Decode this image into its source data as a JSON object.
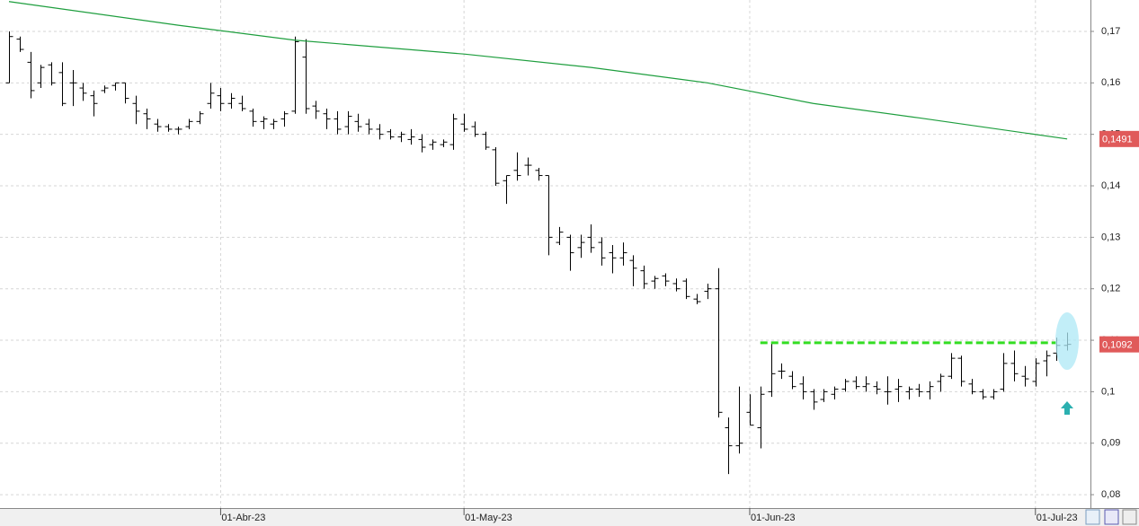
{
  "chart_data": {
    "type": "ohlc",
    "ylim": [
      0.0774,
      0.1761
    ],
    "xlim": [
      -0.85,
      102.2
    ],
    "yticks": [
      {
        "value": 0.17,
        "label": "0,17"
      },
      {
        "value": 0.16,
        "label": "0,16"
      },
      {
        "value": 0.15,
        "label": "0,15"
      },
      {
        "value": 0.14,
        "label": "0,14"
      },
      {
        "value": 0.13,
        "label": "0,13"
      },
      {
        "value": 0.12,
        "label": "0,12"
      },
      {
        "value": 0.11,
        "label": "0,11"
      },
      {
        "value": 0.1,
        "label": "0,1"
      },
      {
        "value": 0.09,
        "label": "0,09"
      },
      {
        "value": 0.08,
        "label": "0,08"
      }
    ],
    "xticks": [
      {
        "value": 20,
        "label": "01-Abr-23"
      },
      {
        "value": 43,
        "label": "01-May-23"
      },
      {
        "value": 70,
        "label": "01-Jun-23"
      },
      {
        "value": 97,
        "label": "01-Jul-23"
      }
    ],
    "grid": true,
    "color": "#000000",
    "open": [
      0.16,
      0.1685,
      0.164,
      0.16,
      0.1635,
      0.162,
      0.16,
      0.159,
      0.1575,
      0.1585,
      0.1595,
      0.16,
      0.156,
      0.154,
      0.152,
      0.1515,
      0.151,
      0.1515,
      0.1525,
      0.156,
      0.1575,
      0.156,
      0.156,
      0.1545,
      0.1525,
      0.152,
      0.153,
      0.1545,
      0.165,
      0.1555,
      0.154,
      0.153,
      0.1515,
      0.1525,
      0.152,
      0.151,
      0.1505,
      0.1495,
      0.149,
      0.149,
      0.148,
      0.148,
      0.148,
      0.152,
      0.1515,
      0.15,
      0.147,
      0.141,
      0.143,
      0.144,
      0.143,
      0.142,
      0.129,
      0.13,
      0.128,
      0.13,
      0.129,
      0.127,
      0.126,
      0.1255,
      0.1235,
      0.1215,
      0.1225,
      0.121,
      0.1215,
      0.118,
      0.1195,
      0.12,
      0.093,
      0.0895,
      0.096,
      0.093,
      0.1,
      0.104,
      0.103,
      0.1015,
      0.1,
      0.0985,
      0.0995,
      0.1005,
      0.102,
      0.101,
      0.101,
      0.1,
      0.1005,
      0.1,
      0.1005,
      0.1,
      0.102,
      0.103,
      0.1065,
      0.1015,
      0.1,
      0.099,
      0.1005,
      0.1055,
      0.103,
      0.102,
      0.106,
      0.1075,
      0.109
    ],
    "high": [
      0.17,
      0.169,
      0.166,
      0.1635,
      0.164,
      0.164,
      0.1625,
      0.16,
      0.1585,
      0.1595,
      0.16,
      0.16,
      0.1575,
      0.155,
      0.153,
      0.152,
      0.1515,
      0.153,
      0.1545,
      0.16,
      0.159,
      0.158,
      0.1575,
      0.155,
      0.1535,
      0.153,
      0.1545,
      0.169,
      0.1685,
      0.1565,
      0.155,
      0.1545,
      0.1545,
      0.154,
      0.153,
      0.152,
      0.151,
      0.1505,
      0.151,
      0.15,
      0.149,
      0.149,
      0.154,
      0.154,
      0.1525,
      0.1505,
      0.1475,
      0.142,
      0.1465,
      0.1455,
      0.1435,
      0.142,
      0.132,
      0.1305,
      0.1305,
      0.1325,
      0.13,
      0.1285,
      0.129,
      0.1265,
      0.1245,
      0.1225,
      0.123,
      0.122,
      0.122,
      0.119,
      0.121,
      0.124,
      0.095,
      0.101,
      0.0995,
      0.101,
      0.1095,
      0.1055,
      0.104,
      0.103,
      0.1005,
      0.1005,
      0.101,
      0.1025,
      0.103,
      0.103,
      0.102,
      0.103,
      0.1025,
      0.101,
      0.1015,
      0.102,
      0.1035,
      0.1075,
      0.107,
      0.1025,
      0.1005,
      0.1005,
      0.1075,
      0.108,
      0.105,
      0.1065,
      0.108,
      0.1105,
      0.1115
    ],
    "low": [
      0.16,
      0.166,
      0.157,
      0.159,
      0.1595,
      0.1555,
      0.1555,
      0.1565,
      0.1535,
      0.158,
      0.1585,
      0.156,
      0.152,
      0.151,
      0.1505,
      0.1505,
      0.15,
      0.151,
      0.152,
      0.155,
      0.1545,
      0.155,
      0.1545,
      0.1515,
      0.151,
      0.151,
      0.1515,
      0.154,
      0.154,
      0.153,
      0.151,
      0.15,
      0.15,
      0.1505,
      0.15,
      0.149,
      0.149,
      0.1485,
      0.148,
      0.1465,
      0.147,
      0.1475,
      0.147,
      0.1505,
      0.1495,
      0.147,
      0.14,
      0.1365,
      0.141,
      0.142,
      0.141,
      0.1265,
      0.1285,
      0.1235,
      0.126,
      0.127,
      0.1245,
      0.123,
      0.1245,
      0.1205,
      0.12,
      0.12,
      0.1205,
      0.1195,
      0.118,
      0.117,
      0.118,
      0.095,
      0.084,
      0.088,
      0.0935,
      0.089,
      0.099,
      0.1025,
      0.1005,
      0.0985,
      0.0965,
      0.098,
      0.0985,
      0.1,
      0.1005,
      0.1,
      0.0995,
      0.0975,
      0.098,
      0.0985,
      0.099,
      0.0985,
      0.1,
      0.1025,
      0.101,
      0.0995,
      0.0985,
      0.0985,
      0.1,
      0.102,
      0.101,
      0.101,
      0.103,
      0.106,
      0.108
    ],
    "close": [
      0.169,
      0.1665,
      0.1585,
      0.163,
      0.16,
      0.156,
      0.16,
      0.158,
      0.156,
      0.159,
      0.16,
      0.157,
      0.1545,
      0.153,
      0.1515,
      0.151,
      0.151,
      0.1525,
      0.154,
      0.158,
      0.156,
      0.157,
      0.155,
      0.1525,
      0.153,
      0.1525,
      0.154,
      0.168,
      0.155,
      0.1545,
      0.153,
      0.151,
      0.1535,
      0.1515,
      0.151,
      0.15,
      0.1495,
      0.15,
      0.1495,
      0.1475,
      0.1485,
      0.1485,
      0.153,
      0.151,
      0.15,
      0.1475,
      0.1405,
      0.142,
      0.142,
      0.144,
      0.142,
      0.13,
      0.131,
      0.127,
      0.129,
      0.128,
      0.126,
      0.126,
      0.127,
      0.124,
      0.121,
      0.122,
      0.1215,
      0.12,
      0.1185,
      0.1175,
      0.12,
      0.096,
      0.0895,
      0.09,
      0.0935,
      0.0995,
      0.1035,
      0.104,
      0.101,
      0.1,
      0.098,
      0.1,
      0.1005,
      0.102,
      0.101,
      0.1015,
      0.1005,
      0.1,
      0.101,
      0.1005,
      0.1,
      0.101,
      0.103,
      0.1065,
      0.102,
      0.1,
      0.099,
      0.1,
      0.1055,
      0.1035,
      0.1025,
      0.1055,
      0.107,
      0.109,
      0.1092
    ],
    "moving_average": {
      "color": "#1e9e3e",
      "x": [
        0,
        16,
        27,
        43,
        55,
        66,
        76,
        86,
        100
      ],
      "values": [
        0.1758,
        0.1712,
        0.1683,
        0.1656,
        0.163,
        0.16,
        0.156,
        0.1532,
        0.1491
      ]
    },
    "level_line": {
      "value": 0.1095,
      "from": 71,
      "to": 99,
      "color": "#33dd22"
    },
    "price_tags": [
      {
        "value": 0.1491,
        "label": "0,1491",
        "color": "#e05a5a"
      },
      {
        "value": 0.1092,
        "label": "0,1092",
        "color": "#e05a5a"
      }
    ]
  }
}
